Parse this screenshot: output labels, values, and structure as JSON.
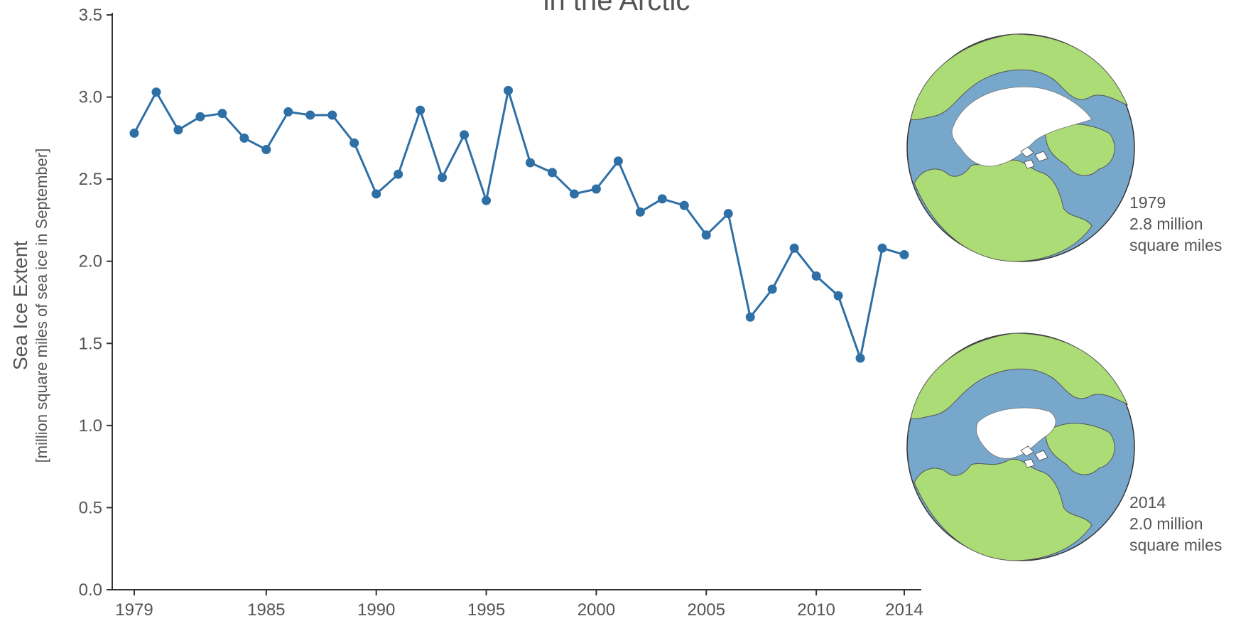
{
  "chart_data": {
    "type": "line",
    "title": "in the Arctic",
    "ylabel": "Sea Ice Extent",
    "ylabel_sub": "[million square miles of sea ice in September]",
    "xlabel": "",
    "ylim": [
      0,
      3.5
    ],
    "xlim": [
      1979,
      2014
    ],
    "grid": false,
    "x_ticks": [
      "1979",
      "1985",
      "1990",
      "1995",
      "2000",
      "2005",
      "2010",
      "2014"
    ],
    "y_ticks": [
      "0.0",
      "0.5",
      "1.0",
      "1.5",
      "2.0",
      "2.5",
      "3.0",
      "3.5"
    ],
    "color": "#2e6fa6",
    "series": [
      {
        "x": [
          1979,
          1980,
          1981,
          1982,
          1983,
          1984,
          1985,
          1986,
          1987,
          1988,
          1989,
          1990,
          1991,
          1992,
          1993,
          1994,
          1995,
          1996,
          1997,
          1998,
          1999,
          2000,
          2001,
          2002,
          2003,
          2004,
          2005,
          2006,
          2007,
          2008,
          2009,
          2010,
          2011,
          2012,
          2013,
          2014
        ],
        "values": [
          2.78,
          3.03,
          2.8,
          2.88,
          2.9,
          2.75,
          2.68,
          2.91,
          2.89,
          2.89,
          2.72,
          2.41,
          2.53,
          2.92,
          2.51,
          2.77,
          2.37,
          3.04,
          2.6,
          2.54,
          2.41,
          2.44,
          2.61,
          2.3,
          2.38,
          2.34,
          2.16,
          2.29,
          1.66,
          1.83,
          2.08,
          1.91,
          1.79,
          1.41,
          2.08,
          2.04
        ]
      }
    ]
  },
  "maps": [
    {
      "year": "1979",
      "value_line": "2.8 million",
      "unit_line": "square miles",
      "icon": "arctic-map-1979"
    },
    {
      "year": "2014",
      "value_line": "2.0 million",
      "unit_line": "square miles",
      "icon": "arctic-map-2014"
    }
  ],
  "colors": {
    "line": "#2e6fa6",
    "ocean": "#77a7cb",
    "land": "#acdc76",
    "ice": "#ffffff",
    "axis": "#333333"
  }
}
